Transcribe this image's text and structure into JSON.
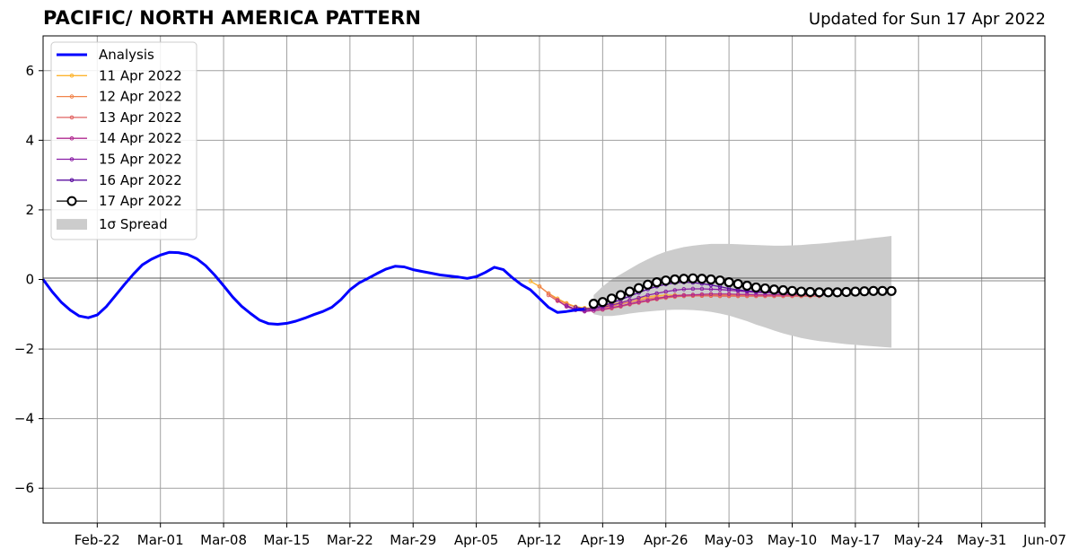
{
  "chart_data": {
    "type": "line",
    "title": "PACIFIC/ NORTH AMERICA PATTERN",
    "subtitle": "Updated for Sun 17 Apr 2022",
    "xlabel": "",
    "ylabel": "",
    "ylim": [
      -7,
      7
    ],
    "yticks": [
      -6,
      -4,
      -2,
      0,
      2,
      4,
      6
    ],
    "ytick_labels": [
      "−6",
      "−4",
      "−2",
      "0",
      "2",
      "4",
      "6"
    ],
    "xlim": [
      "2022-02-16",
      "2022-06-07"
    ],
    "xticks": [
      "2022-02-22",
      "2022-03-01",
      "2022-03-08",
      "2022-03-15",
      "2022-03-22",
      "2022-03-29",
      "2022-04-05",
      "2022-04-12",
      "2022-04-19",
      "2022-04-26",
      "2022-05-03",
      "2022-05-10",
      "2022-05-17",
      "2022-05-24",
      "2022-05-31",
      "2022-06-07"
    ],
    "xtick_labels": [
      "Feb-22",
      "Mar-01",
      "Mar-08",
      "Mar-15",
      "Mar-22",
      "Mar-29",
      "Apr-05",
      "Apr-12",
      "Apr-19",
      "Apr-26",
      "May-03",
      "May-10",
      "May-17",
      "May-24",
      "May-31",
      "Jun-07"
    ],
    "grid": true,
    "legend_position": "top-left",
    "analysis": {
      "name": "Analysis",
      "color": "#0000ff",
      "x": [
        "2022-02-16",
        "2022-02-17",
        "2022-02-18",
        "2022-02-19",
        "2022-02-20",
        "2022-02-21",
        "2022-02-22",
        "2022-02-23",
        "2022-02-24",
        "2022-02-25",
        "2022-02-26",
        "2022-02-27",
        "2022-02-28",
        "2022-03-01",
        "2022-03-02",
        "2022-03-03",
        "2022-03-04",
        "2022-03-05",
        "2022-03-06",
        "2022-03-07",
        "2022-03-08",
        "2022-03-09",
        "2022-03-10",
        "2022-03-11",
        "2022-03-12",
        "2022-03-13",
        "2022-03-14",
        "2022-03-15",
        "2022-03-16",
        "2022-03-17",
        "2022-03-18",
        "2022-03-19",
        "2022-03-20",
        "2022-03-21",
        "2022-03-22",
        "2022-03-23",
        "2022-03-24",
        "2022-03-25",
        "2022-03-26",
        "2022-03-27",
        "2022-03-28",
        "2022-03-29",
        "2022-03-30",
        "2022-03-31",
        "2022-04-01",
        "2022-04-02",
        "2022-04-03",
        "2022-04-04",
        "2022-04-05",
        "2022-04-06",
        "2022-04-07",
        "2022-04-08",
        "2022-04-09",
        "2022-04-10",
        "2022-04-11",
        "2022-04-12",
        "2022-04-13",
        "2022-04-14",
        "2022-04-15",
        "2022-04-16",
        "2022-04-17"
      ],
      "y": [
        0.0,
        -0.35,
        -0.65,
        -0.88,
        -1.05,
        -1.1,
        -1.02,
        -0.78,
        -0.47,
        -0.15,
        0.15,
        0.42,
        0.58,
        0.7,
        0.78,
        0.77,
        0.72,
        0.6,
        0.4,
        0.13,
        -0.18,
        -0.5,
        -0.77,
        -0.98,
        -1.17,
        -1.27,
        -1.29,
        -1.26,
        -1.2,
        -1.11,
        -1.01,
        -0.92,
        -0.8,
        -0.58,
        -0.3,
        -0.1,
        0.03,
        0.17,
        0.3,
        0.38,
        0.36,
        0.28,
        0.23,
        0.18,
        0.13,
        0.1,
        0.07,
        0.03,
        0.08,
        0.2,
        0.35,
        0.28,
        0.05,
        -0.15,
        -0.3,
        -0.55,
        -0.8,
        -0.95,
        -0.92,
        -0.88,
        -0.85
      ]
    },
    "forecasts": [
      {
        "name": "11 Apr 2022",
        "color": "#fdb42f",
        "start": "2022-04-11",
        "y": [
          -0.05,
          -0.2,
          -0.4,
          -0.55,
          -0.68,
          -0.78,
          -0.82,
          -0.82,
          -0.78,
          -0.72,
          -0.66,
          -0.6,
          -0.55,
          -0.5,
          -0.47,
          -0.45,
          -0.45,
          -0.45,
          -0.45,
          -0.45,
          -0.45,
          -0.45,
          -0.45,
          -0.45,
          -0.45,
          -0.45,
          -0.45,
          -0.45,
          -0.45,
          -0.45,
          -0.45
        ]
      },
      {
        "name": "12 Apr 2022",
        "color": "#f1844b",
        "start": "2022-04-12",
        "y": [
          -0.2,
          -0.4,
          -0.58,
          -0.7,
          -0.8,
          -0.85,
          -0.85,
          -0.82,
          -0.77,
          -0.71,
          -0.65,
          -0.6,
          -0.55,
          -0.52,
          -0.5,
          -0.48,
          -0.47,
          -0.47,
          -0.47,
          -0.47,
          -0.47,
          -0.47,
          -0.47,
          -0.47,
          -0.47,
          -0.47,
          -0.47,
          -0.47,
          -0.47,
          -0.47,
          -0.47
        ]
      },
      {
        "name": "13 Apr 2022",
        "color": "#e16462",
        "start": "2022-04-13",
        "y": [
          -0.45,
          -0.62,
          -0.75,
          -0.85,
          -0.9,
          -0.9,
          -0.87,
          -0.83,
          -0.78,
          -0.72,
          -0.67,
          -0.62,
          -0.57,
          -0.53,
          -0.5,
          -0.48,
          -0.47,
          -0.47,
          -0.47,
          -0.48,
          -0.48,
          -0.48,
          -0.48,
          -0.48,
          -0.48,
          -0.48,
          -0.48,
          -0.48,
          -0.48,
          -0.48,
          -0.48
        ]
      },
      {
        "name": "14 Apr 2022",
        "color": "#b12a90",
        "start": "2022-04-14",
        "y": [
          -0.6,
          -0.78,
          -0.88,
          -0.92,
          -0.9,
          -0.86,
          -0.81,
          -0.76,
          -0.7,
          -0.65,
          -0.6,
          -0.55,
          -0.5,
          -0.47,
          -0.45,
          -0.44,
          -0.43,
          -0.42,
          -0.42,
          -0.42,
          -0.43,
          -0.43,
          -0.44,
          -0.44,
          -0.44,
          -0.44,
          -0.44,
          -0.44,
          -0.44,
          -0.44,
          -0.44
        ]
      },
      {
        "name": "15 Apr 2022",
        "color": "#8a1fa6",
        "start": "2022-04-15",
        "y": [
          -0.75,
          -0.87,
          -0.9,
          -0.86,
          -0.8,
          -0.74,
          -0.67,
          -0.6,
          -0.53,
          -0.45,
          -0.4,
          -0.35,
          -0.31,
          -0.28,
          -0.27,
          -0.27,
          -0.28,
          -0.29,
          -0.31,
          -0.33,
          -0.35,
          -0.37,
          -0.38,
          -0.39,
          -0.4,
          -0.4,
          -0.4,
          -0.4,
          -0.4,
          -0.4,
          -0.4
        ]
      },
      {
        "name": "16 Apr 2022",
        "color": "#5c0fa0",
        "start": "2022-04-16",
        "y": [
          -0.8,
          -0.85,
          -0.82,
          -0.76,
          -0.68,
          -0.58,
          -0.48,
          -0.38,
          -0.28,
          -0.2,
          -0.14,
          -0.1,
          -0.08,
          -0.09,
          -0.12,
          -0.16,
          -0.21,
          -0.26,
          -0.3,
          -0.33,
          -0.35,
          -0.36,
          -0.37,
          -0.37,
          -0.37,
          -0.37,
          -0.37,
          -0.37,
          -0.37,
          -0.37,
          -0.37
        ]
      },
      {
        "name": "17 Apr 2022",
        "color": "#000000",
        "start": "2022-04-18",
        "y": [
          -0.7,
          -0.65,
          -0.55,
          -0.45,
          -0.35,
          -0.25,
          -0.15,
          -0.08,
          -0.03,
          0.0,
          0.02,
          0.03,
          0.02,
          0.0,
          -0.03,
          -0.08,
          -0.13,
          -0.18,
          -0.23,
          -0.26,
          -0.29,
          -0.31,
          -0.33,
          -0.35,
          -0.36,
          -0.37,
          -0.37,
          -0.37,
          -0.36,
          -0.35,
          -0.34,
          -0.33,
          -0.33,
          -0.33
        ]
      }
    ],
    "spread": {
      "name": "1σ Spread",
      "color": "#cccccc",
      "start": "2022-04-18",
      "upper": [
        -0.45,
        -0.2,
        0.0,
        0.15,
        0.3,
        0.45,
        0.58,
        0.7,
        0.8,
        0.87,
        0.93,
        0.97,
        1.0,
        1.02,
        1.02,
        1.02,
        1.01,
        1.0,
        0.99,
        0.98,
        0.97,
        0.97,
        0.98,
        0.99,
        1.01,
        1.03,
        1.05,
        1.08,
        1.1,
        1.13,
        1.16,
        1.19,
        1.22,
        1.25
      ],
      "lower": [
        -1.0,
        -1.05,
        -1.05,
        -1.02,
        -0.98,
        -0.95,
        -0.92,
        -0.9,
        -0.88,
        -0.87,
        -0.87,
        -0.88,
        -0.9,
        -0.93,
        -0.98,
        -1.04,
        -1.12,
        -1.2,
        -1.3,
        -1.38,
        -1.47,
        -1.55,
        -1.62,
        -1.68,
        -1.73,
        -1.77,
        -1.8,
        -1.83,
        -1.86,
        -1.88,
        -1.9,
        -1.92,
        -1.94,
        -1.96
      ]
    }
  }
}
